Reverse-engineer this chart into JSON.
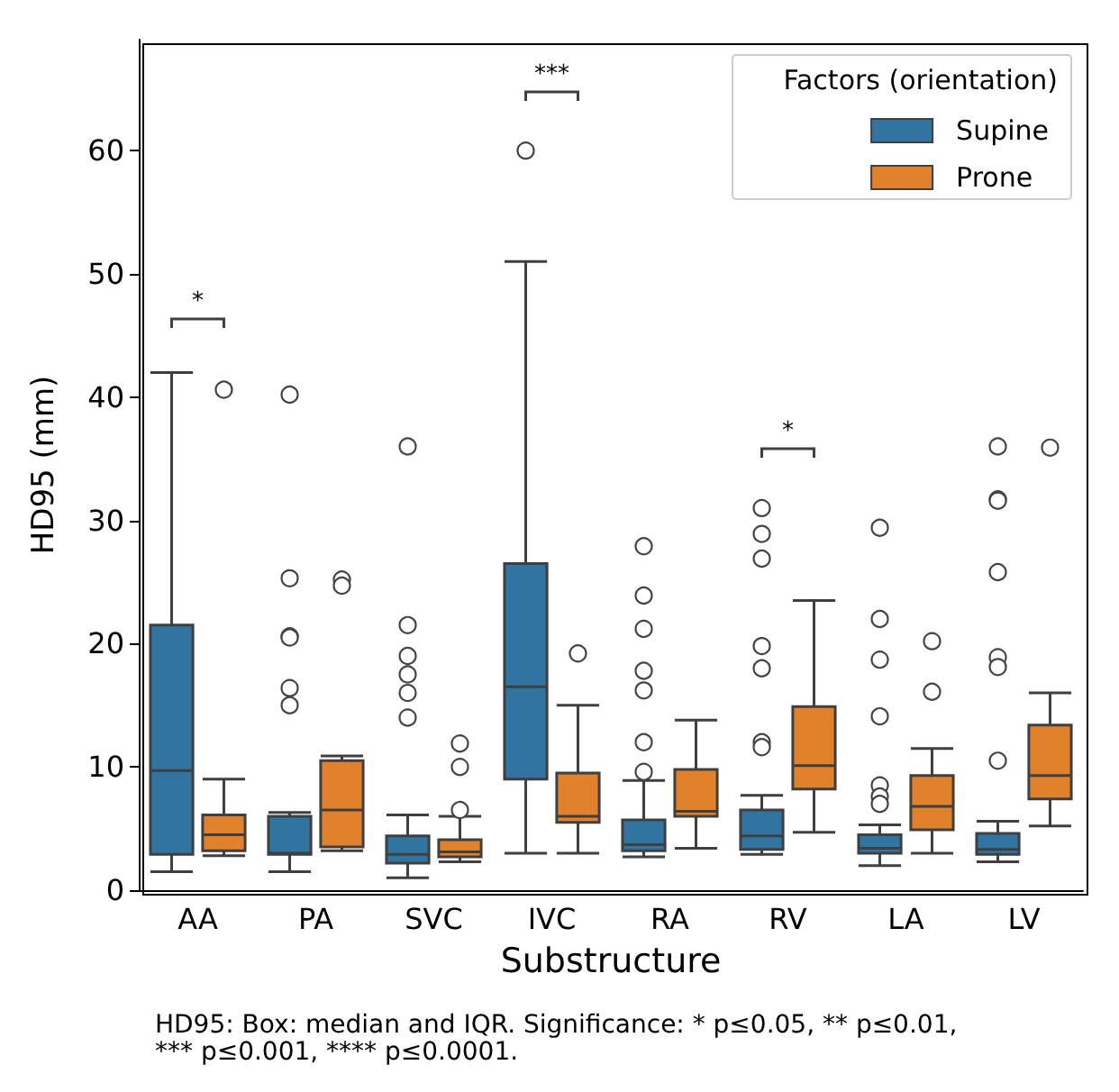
{
  "chart_data": {
    "type": "box",
    "xlabel": "Substructure",
    "ylabel": "HD95 (mm)",
    "legend_title": "Factors (orientation)",
    "legend": "top right",
    "grid": false,
    "categories": [
      "AA",
      "PA",
      "SVC",
      "IVC",
      "RA",
      "RV",
      "LA",
      "LV"
    ],
    "ylim": [
      0,
      69
    ],
    "yticks": [
      0,
      10,
      20,
      30,
      40,
      50,
      60
    ],
    "series": [
      {
        "name": "Supine",
        "color": "#3274a1",
        "boxes": [
          {
            "low": 1.5,
            "q1": 2.9,
            "median": 9.7,
            "q3": 21.5,
            "high": 42
          },
          {
            "low": 1.5,
            "q1": 2.9,
            "median": 3.0,
            "q3": 6.0,
            "high": 6.3,
            "outliers": [
              40.2,
              25.3,
              20.6,
              20.5,
              16.4,
              15.0
            ]
          },
          {
            "low": 1.0,
            "q1": 2.2,
            "median": 2.9,
            "q3": 4.4,
            "high": 6.1,
            "outliers": [
              36,
              21.5,
              19,
              17.5,
              16,
              14
            ]
          },
          {
            "low": 3.0,
            "q1": 9.0,
            "median": 16.5,
            "q3": 26.5,
            "high": 51,
            "outliers": [
              60
            ]
          },
          {
            "low": 2.7,
            "q1": 3.2,
            "median": 3.7,
            "q3": 5.7,
            "high": 8.9,
            "outliers": [
              27.9,
              23.9,
              21.2,
              17.8,
              16.2,
              12.0,
              9.6
            ]
          },
          {
            "low": 2.9,
            "q1": 3.3,
            "median": 4.4,
            "q3": 6.5,
            "high": 7.7,
            "outliers": [
              31,
              28.9,
              26.9,
              19.8,
              18.0,
              12.0,
              11.6
            ]
          },
          {
            "low": 2.0,
            "q1": 3.0,
            "median": 3.4,
            "q3": 4.5,
            "high": 5.3,
            "outliers": [
              29.4,
              22.0,
              18.7,
              14.1,
              8.5,
              7.6,
              7.0
            ]
          },
          {
            "low": 2.3,
            "q1": 2.9,
            "median": 3.3,
            "q3": 4.6,
            "high": 5.6,
            "outliers": [
              36,
              31.7,
              31.6,
              25.8,
              18.9,
              18.1,
              10.5
            ]
          }
        ]
      },
      {
        "name": "Prone",
        "color": "#e1812c",
        "boxes": [
          {
            "low": 2.8,
            "q1": 3.2,
            "median": 4.5,
            "q3": 6.1,
            "high": 9.0,
            "outliers": [
              40.6
            ]
          },
          {
            "low": 3.2,
            "q1": 3.5,
            "median": 6.5,
            "q3": 10.5,
            "high": 10.9,
            "outliers": [
              25.2,
              24.7
            ]
          },
          {
            "low": 2.3,
            "q1": 2.7,
            "median": 3.1,
            "q3": 4.1,
            "high": 6.0,
            "outliers": [
              11.9,
              10.0,
              6.5
            ]
          },
          {
            "low": 3.0,
            "q1": 5.5,
            "median": 6.0,
            "q3": 9.5,
            "high": 15.0,
            "outliers": [
              19.2
            ]
          },
          {
            "low": 3.4,
            "q1": 6.0,
            "median": 6.4,
            "q3": 9.8,
            "high": 13.8
          },
          {
            "low": 4.7,
            "q1": 8.2,
            "median": 10.1,
            "q3": 14.9,
            "high": 23.5
          },
          {
            "low": 3.0,
            "q1": 4.9,
            "median": 6.8,
            "q3": 9.3,
            "high": 11.5,
            "outliers": [
              20.2,
              16.1
            ]
          },
          {
            "low": 5.2,
            "q1": 7.4,
            "median": 9.3,
            "q3": 13.4,
            "high": 16.0,
            "outliers": [
              35.9
            ]
          }
        ]
      }
    ],
    "annotations": [
      "*",
      "***",
      "*",
      "HD95: Box: median and IQR. Significance: * p≤0.05, ** p≤0.01, *** p≤0.001, **** p≤0.0001."
    ]
  }
}
